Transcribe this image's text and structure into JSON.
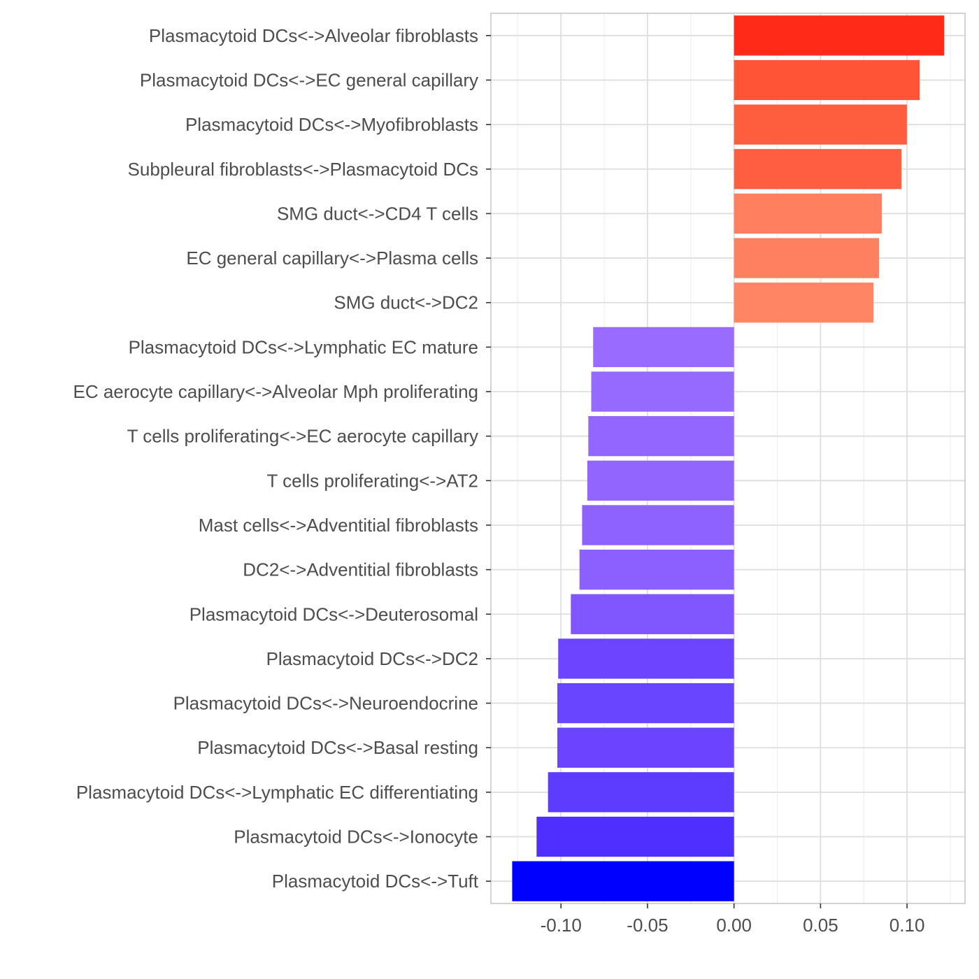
{
  "chart_data": {
    "type": "bar",
    "orientation": "horizontal",
    "title": "",
    "xlabel": "",
    "ylabel": "",
    "xlim": [
      -0.1405,
      0.1335
    ],
    "grid": true,
    "legend": "none",
    "x_ticks": [
      -0.1,
      -0.05,
      0.0,
      0.05,
      0.1
    ],
    "x_tick_labels": [
      "-0.10",
      "-0.05",
      "0.00",
      "0.05",
      "0.10"
    ],
    "categories": [
      "Plasmacytoid DCs<->Alveolar fibroblasts",
      "Plasmacytoid DCs<->EC general capillary",
      "Plasmacytoid DCs<->Myofibroblasts",
      "Subpleural fibroblasts<->Plasmacytoid DCs",
      "SMG duct<->CD4 T cells",
      "EC general capillary<->Plasma cells",
      "SMG duct<->DC2",
      "Plasmacytoid DCs<->Lymphatic EC mature",
      "EC aerocyte capillary<->Alveolar Mph proliferating",
      "T cells proliferating<->EC aerocyte capillary",
      "T cells proliferating<->AT2",
      "Mast cells<->Adventitial fibroblasts",
      "DC2<->Adventitial fibroblasts",
      "Plasmacytoid DCs<->Deuterosomal",
      "Plasmacytoid DCs<->DC2",
      "Plasmacytoid DCs<->Neuroendocrine",
      "Plasmacytoid DCs<->Basal resting",
      "Plasmacytoid DCs<->Lymphatic EC differentiating",
      "Plasmacytoid DCs<->Ionocyte",
      "Plasmacytoid DCs<->Tuft"
    ],
    "values": [
      0.1215,
      0.1073,
      0.0999,
      0.0968,
      0.0854,
      0.0838,
      0.0806,
      -0.0814,
      -0.0825,
      -0.0842,
      -0.0848,
      -0.0878,
      -0.0893,
      -0.0943,
      -0.1016,
      -0.1021,
      -0.1021,
      -0.1075,
      -0.1141,
      -0.1282
    ],
    "colors": [
      "#ff2a17",
      "#ff5436",
      "#ff5e3e",
      "#ff5f40",
      "#ff7f5e",
      "#ff8060",
      "#ff8564",
      "#9a6bff",
      "#966aff",
      "#9366ff",
      "#9265ff",
      "#8e62ff",
      "#8b60ff",
      "#7f56ff",
      "#6b45ff",
      "#6a45ff",
      "#6b44ff",
      "#5d3bff",
      "#4e2fff",
      "#0000ff"
    ]
  }
}
